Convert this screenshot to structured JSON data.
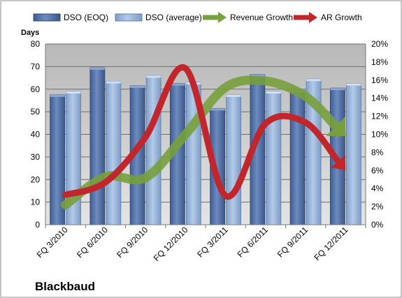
{
  "chart_data": {
    "type": "bar",
    "company_label": "Blackbaud",
    "ylabel": "Days",
    "ylim": [
      0,
      80
    ],
    "yticks": [
      0,
      10,
      20,
      30,
      40,
      50,
      60,
      70,
      80
    ],
    "y2lim": [
      0,
      20
    ],
    "y2ticks": [
      "0%",
      "2%",
      "4%",
      "6%",
      "8%",
      "10%",
      "12%",
      "14%",
      "16%",
      "18%",
      "20%"
    ],
    "y2values": [
      0,
      2,
      4,
      6,
      8,
      10,
      12,
      14,
      16,
      18,
      20
    ],
    "legend_position": "top",
    "grid": true,
    "categories": [
      "FQ 3/2010",
      "FQ 6/2010",
      "FQ 9/2010",
      "FQ 12/2010",
      "FQ 3/2011",
      "FQ 6/2011",
      "FQ 9/2011",
      "FQ 12/2011"
    ],
    "series": [
      {
        "name": "DSO (EOQ)",
        "type": "bar",
        "axis": "left",
        "color": "#4f6fa8",
        "values": [
          57.5,
          69.5,
          61.5,
          62.5,
          51.5,
          66.5,
          59.5,
          60.5
        ]
      },
      {
        "name": "DSO (average)",
        "type": "bar",
        "axis": "left",
        "color": "#95b3d7",
        "values": [
          59,
          63.5,
          66,
          63,
          57.5,
          59,
          64.5,
          62.5
        ]
      },
      {
        "name": "Revenue Growth",
        "type": "line",
        "axis": "right",
        "color": "#77a03c",
        "values": [
          2.2,
          5.3,
          5.2,
          10,
          15.2,
          15.9,
          14.2,
          9.8
        ]
      },
      {
        "name": "AR Growth",
        "type": "line",
        "axis": "right",
        "color": "#c0262c",
        "values": [
          3.3,
          4.7,
          9.7,
          17.3,
          3.2,
          11.2,
          11.3,
          6.0
        ]
      }
    ]
  }
}
